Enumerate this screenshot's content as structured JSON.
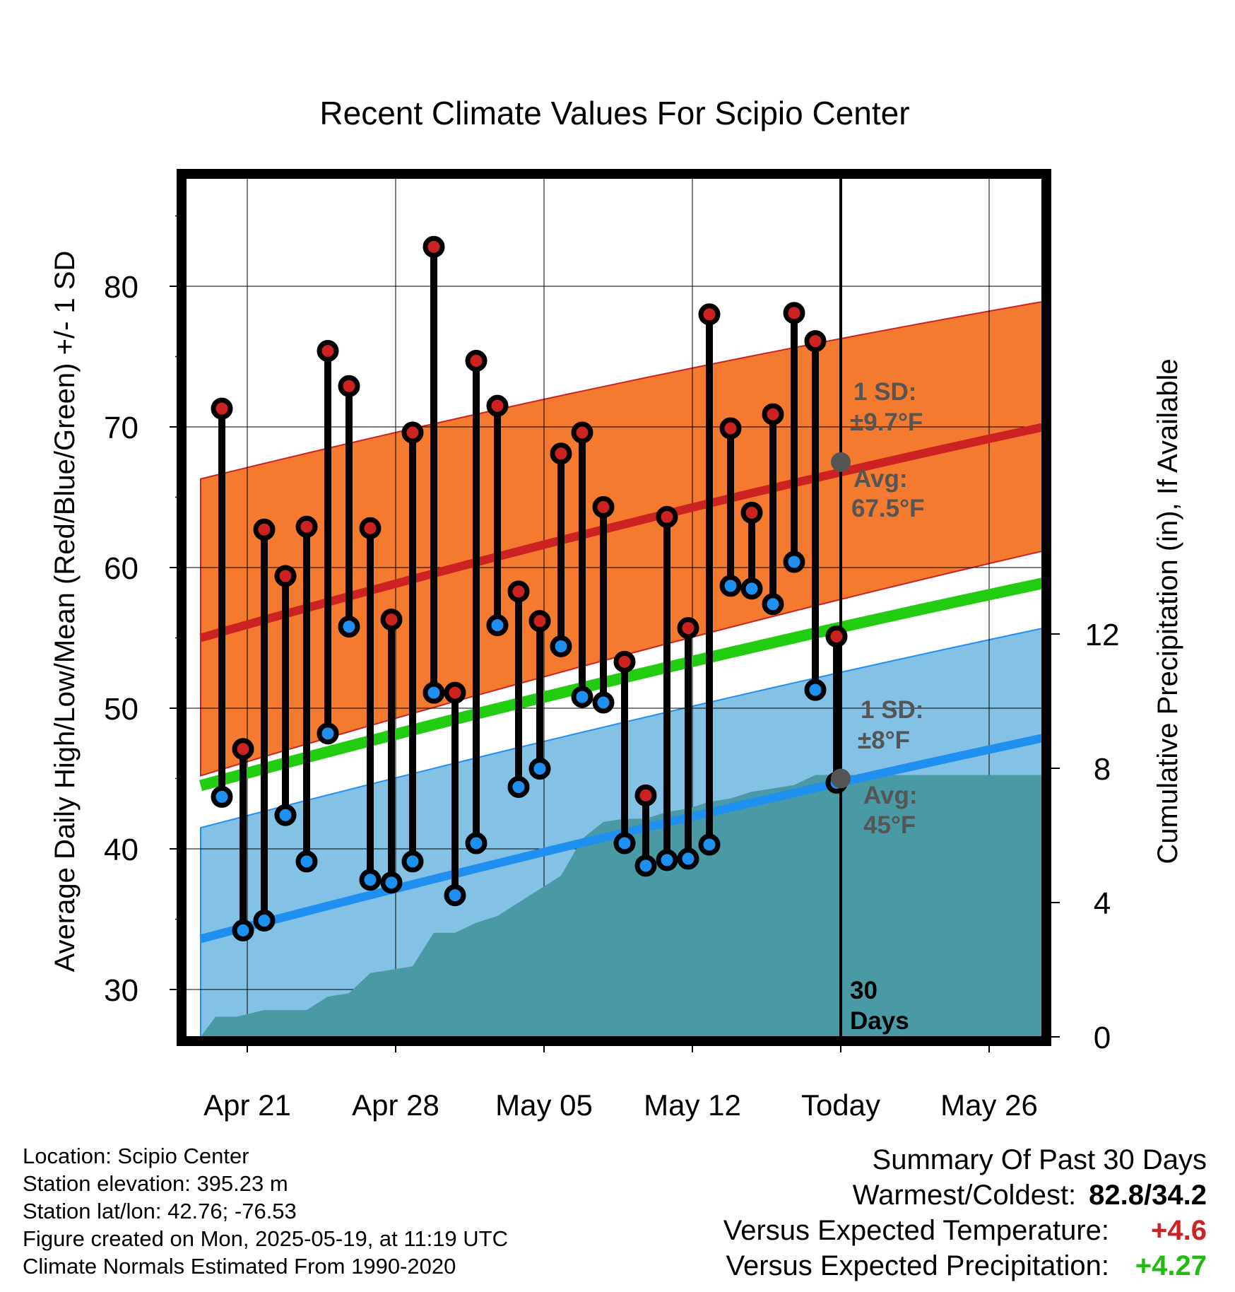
{
  "chart_data": {
    "type": "line",
    "title": "Recent Climate Values For Scipio Center",
    "xlabel": "Day",
    "ylabel_left": "Average Daily High/Low/Mean (Red/Blue/Green) +/- 1 SD",
    "ylabel_right": "Cumulative Precipitation (in), If Available",
    "x_ticks": [
      {
        "day": 3,
        "label": "Apr 21"
      },
      {
        "day": 10,
        "label": "Apr 28"
      },
      {
        "day": 17,
        "label": "May 05"
      },
      {
        "day": 24,
        "label": "May 12"
      },
      {
        "day": 31,
        "label": "Today"
      },
      {
        "day": 38,
        "label": "May 26"
      }
    ],
    "xlim_days": [
      0.8,
      40.9
    ],
    "ylim_left": [
      26.5,
      88
    ],
    "yticks_left": [
      30,
      40,
      50,
      60,
      70,
      80
    ],
    "ylim_right": [
      0,
      25.66
    ],
    "yticks_right": [
      0,
      4,
      8,
      12
    ],
    "today_day": 31,
    "today_label": "30\nDays",
    "normals": {
      "high_mean": [
        55.0,
        70.1
      ],
      "high_sd": 9.7,
      "high_upper": [
        66.3,
        79.0
      ],
      "high_lower": [
        45.2,
        61.3
      ],
      "low_mean": [
        33.6,
        48.0
      ],
      "low_upper": [
        41.5,
        55.8
      ],
      "low_lower": [
        26.5,
        40.0
      ],
      "daily_mean": [
        44.5,
        59.0
      ]
    },
    "high_annotation": {
      "sd": "1 SD:",
      "sd_value": "±9.7°F",
      "avg": "Avg:",
      "avg_value": "67.5°F",
      "value": 67.5
    },
    "low_annotation": {
      "sd": "1 SD:",
      "sd_value": "±8°F",
      "avg": "Avg:",
      "avg_value": "45°F",
      "value": 45
    },
    "daily": [
      {
        "day": 1.8,
        "high": 71.3,
        "low": 43.7
      },
      {
        "day": 2.8,
        "high": 47.1,
        "low": 34.2
      },
      {
        "day": 3.8,
        "high": 62.7,
        "low": 34.9
      },
      {
        "day": 4.8,
        "high": 59.4,
        "low": 42.4
      },
      {
        "day": 5.8,
        "high": 62.9,
        "low": 39.1
      },
      {
        "day": 6.8,
        "high": 75.4,
        "low": 48.2
      },
      {
        "day": 7.8,
        "high": 72.9,
        "low": 55.8
      },
      {
        "day": 8.8,
        "high": 62.8,
        "low": 37.8
      },
      {
        "day": 9.8,
        "high": 56.3,
        "low": 37.6
      },
      {
        "day": 10.8,
        "high": 69.6,
        "low": 39.1
      },
      {
        "day": 11.8,
        "high": 82.8,
        "low": 51.1
      },
      {
        "day": 12.8,
        "high": 51.1,
        "low": 36.7
      },
      {
        "day": 13.8,
        "high": 74.7,
        "low": 40.4
      },
      {
        "day": 14.8,
        "high": 71.5,
        "low": 55.9
      },
      {
        "day": 15.8,
        "high": 58.3,
        "low": 44.4
      },
      {
        "day": 16.8,
        "high": 56.2,
        "low": 45.7
      },
      {
        "day": 17.8,
        "high": 68.1,
        "low": 54.4
      },
      {
        "day": 18.8,
        "high": 69.6,
        "low": 50.8
      },
      {
        "day": 19.8,
        "high": 64.3,
        "low": 50.4
      },
      {
        "day": 20.8,
        "high": 53.3,
        "low": 40.4
      },
      {
        "day": 21.8,
        "high": 43.8,
        "low": 38.8
      },
      {
        "day": 22.8,
        "high": 63.6,
        "low": 39.2
      },
      {
        "day": 23.8,
        "high": 55.7,
        "low": 39.3
      },
      {
        "day": 24.8,
        "high": 78.0,
        "low": 40.3
      },
      {
        "day": 25.8,
        "high": 69.9,
        "low": 58.7
      },
      {
        "day": 26.8,
        "high": 63.9,
        "low": 58.5
      },
      {
        "day": 27.8,
        "high": 70.9,
        "low": 57.4
      },
      {
        "day": 28.8,
        "high": 78.1,
        "low": 60.4
      },
      {
        "day": 29.8,
        "high": 76.1,
        "low": 51.3
      },
      {
        "day": 30.8,
        "high": 55.1,
        "low": 44.7
      }
    ],
    "precip_cumulative": [
      {
        "day": 0.8,
        "value": 0.0
      },
      {
        "day": 1.5,
        "value": 0.6
      },
      {
        "day": 2.5,
        "value": 0.6
      },
      {
        "day": 3.8,
        "value": 0.8
      },
      {
        "day": 4.8,
        "value": 0.8
      },
      {
        "day": 5.8,
        "value": 0.8
      },
      {
        "day": 6.8,
        "value": 1.2
      },
      {
        "day": 7.8,
        "value": 1.3
      },
      {
        "day": 8.8,
        "value": 1.9
      },
      {
        "day": 9.8,
        "value": 2.0
      },
      {
        "day": 10.8,
        "value": 2.1
      },
      {
        "day": 11.8,
        "value": 3.1
      },
      {
        "day": 12.8,
        "value": 3.1
      },
      {
        "day": 13.8,
        "value": 3.4
      },
      {
        "day": 14.8,
        "value": 3.6
      },
      {
        "day": 15.8,
        "value": 4.0
      },
      {
        "day": 16.8,
        "value": 4.4
      },
      {
        "day": 17.8,
        "value": 4.8
      },
      {
        "day": 18.8,
        "value": 5.9
      },
      {
        "day": 19.8,
        "value": 6.4
      },
      {
        "day": 20.8,
        "value": 6.5
      },
      {
        "day": 21.8,
        "value": 6.5
      },
      {
        "day": 22.8,
        "value": 6.7
      },
      {
        "day": 23.8,
        "value": 6.8
      },
      {
        "day": 24.8,
        "value": 7.0
      },
      {
        "day": 25.8,
        "value": 7.1
      },
      {
        "day": 26.8,
        "value": 7.3
      },
      {
        "day": 27.8,
        "value": 7.4
      },
      {
        "day": 28.8,
        "value": 7.5
      },
      {
        "day": 29.8,
        "value": 7.8
      },
      {
        "day": 30.8,
        "value": 7.8
      },
      {
        "day": 40.9,
        "value": 7.8
      }
    ],
    "colors": {
      "high_band": "#f47a2f",
      "high_mean": "#cc2222",
      "low_band": "#83c1e5",
      "low_mean": "#2090f0",
      "daily_mean": "#22cc11",
      "precip": "#4a9aa5",
      "high_marker": "#cc2222",
      "low_marker": "#1e90f0",
      "annotation": "#555555",
      "today_marker": "#555555"
    }
  },
  "info": {
    "location": "Location: Scipio Center",
    "elevation": "Station elevation: 395.23 m",
    "latlon": "Station lat/lon: 42.76; -76.53",
    "created": "Figure created on Mon, 2025-05-19, at 11:19 UTC",
    "normals": "Climate Normals Estimated From 1990-2020"
  },
  "summary": {
    "title": "Summary Of Past 30 Days",
    "warmest_label": "Warmest/Coldest:",
    "warmest_value": "82.8/34.2",
    "temp_label": "Versus Expected Temperature:",
    "temp_value": "+4.6",
    "temp_color": "#cc2222",
    "precip_label": "Versus Expected Precipitation:",
    "precip_value": "+4.27",
    "precip_color": "#22bb11"
  }
}
